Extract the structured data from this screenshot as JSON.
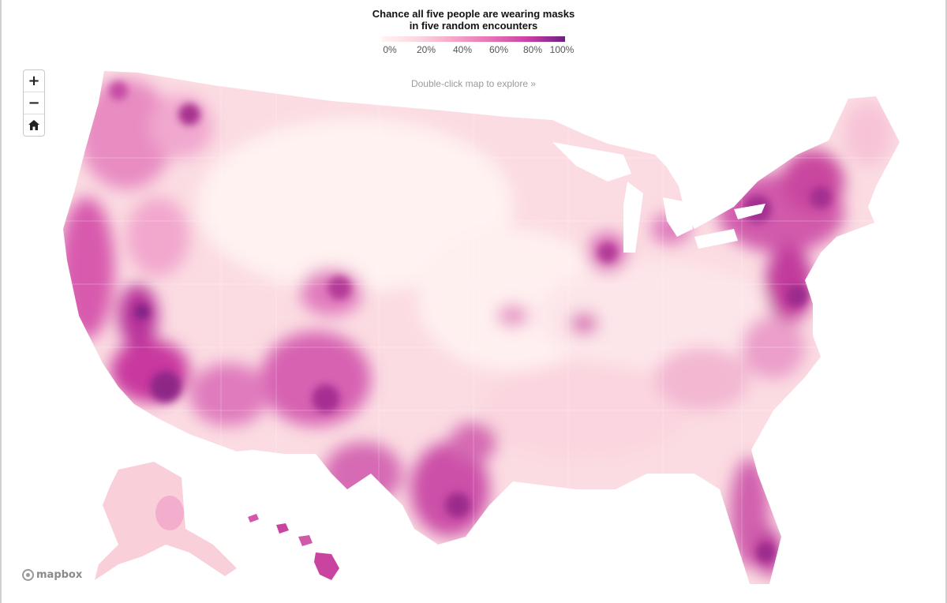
{
  "legend": {
    "title_line1": "Chance all five people are wearing masks",
    "title_line2": "in five random encounters",
    "ticks": [
      "0%",
      "20%",
      "40%",
      "60%",
      "80%",
      "100%"
    ],
    "colors": [
      "#fff4f2",
      "#fbd6e0",
      "#f5a3c6",
      "#e671b6",
      "#cc3fa6",
      "#6b1f83"
    ]
  },
  "hint": "Double-click map to explore »",
  "controls": {
    "zoom_in": "+",
    "zoom_out": "−",
    "home_icon": "home-icon"
  },
  "attribution": "mapbox",
  "map": {
    "regions": [
      {
        "name": "pacific-northwest",
        "level": 0.6
      },
      {
        "name": "california-coast",
        "level": 0.75
      },
      {
        "name": "great-plains",
        "level": 0.1
      },
      {
        "name": "southwest",
        "level": 0.6
      },
      {
        "name": "texas",
        "level": 0.55
      },
      {
        "name": "northeast",
        "level": 0.8
      },
      {
        "name": "southeast",
        "level": 0.3
      },
      {
        "name": "florida",
        "level": 0.55
      },
      {
        "name": "alaska",
        "level": 0.2
      },
      {
        "name": "hawaii",
        "level": 0.75
      }
    ]
  }
}
